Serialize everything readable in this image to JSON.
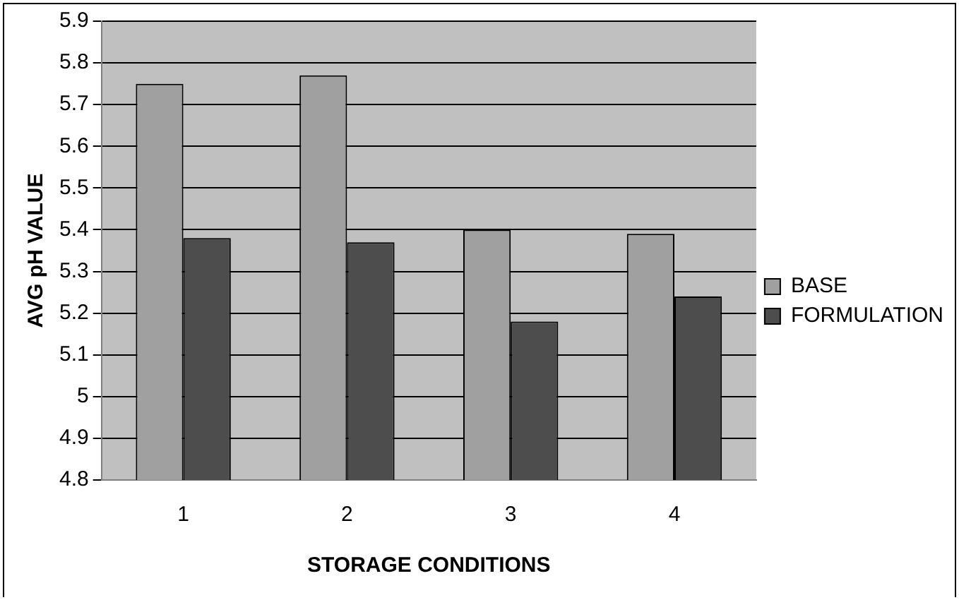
{
  "chart_data": {
    "type": "bar",
    "xlabel": "STORAGE CONDITIONS",
    "ylabel": "AVG pH VALUE",
    "categories": [
      "1",
      "2",
      "3",
      "4"
    ],
    "series": [
      {
        "name": "BASE",
        "color": "#a0a0a0",
        "values": [
          5.75,
          5.77,
          5.4,
          5.39
        ]
      },
      {
        "name": "FORMULATION",
        "color": "#4d4d4d",
        "values": [
          5.38,
          5.37,
          5.18,
          5.24
        ]
      }
    ],
    "ylim": [
      4.8,
      5.9
    ],
    "yticks": [
      4.8,
      4.9,
      5,
      5.1,
      5.2,
      5.3,
      5.4,
      5.5,
      5.6,
      5.7,
      5.8,
      5.9
    ],
    "grid": "y",
    "legend": "right"
  }
}
